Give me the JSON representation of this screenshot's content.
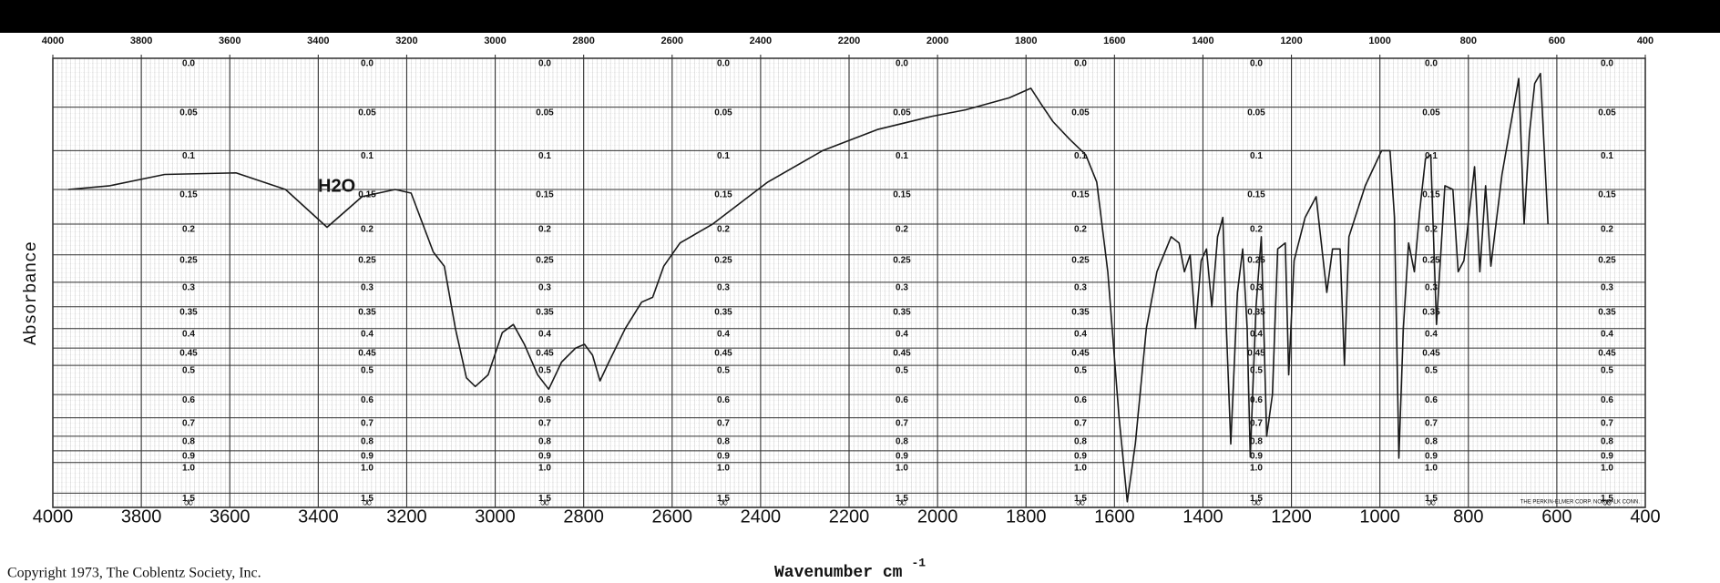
{
  "chart_data": {
    "type": "line",
    "y_label": "Absorbance",
    "x_label": "Wavenumber cm",
    "x_label_sup": "-1",
    "copyright": "Copyright 1973, The Coblentz Society, Inc.",
    "manufacturer": "THE PERKIN-ELMER CORP. NORWALK CONN.",
    "annotation": "H2O",
    "y_scale": "transmittance",
    "y_end_label": "∞",
    "color": "#1a1a1a",
    "grid": true,
    "xlim": [
      4000,
      400
    ],
    "xticks": [
      4000,
      3800,
      3600,
      3400,
      3200,
      3000,
      2800,
      2600,
      2400,
      2200,
      2000,
      1800,
      1600,
      1400,
      1200,
      1000,
      800,
      600,
      400
    ],
    "ylim": [
      0,
      1.5
    ],
    "yticks": [
      {
        "value": 0,
        "label": "0.0"
      },
      0.05,
      0.1,
      0.15,
      0.2,
      0.25,
      0.3,
      0.35,
      0.4,
      0.45,
      0.5,
      0.6,
      0.7,
      0.8,
      0.9,
      {
        "value": 1,
        "label": "1.0"
      },
      1.5
    ],
    "x": [
      3965,
      3871,
      3747,
      3586,
      3474,
      3380,
      3301,
      3226,
      3190,
      3140,
      3115,
      3090,
      3065,
      3045,
      3016,
      2984,
      2959,
      2934,
      2904,
      2879,
      2850,
      2818,
      2798,
      2780,
      2763,
      2743,
      2706,
      2669,
      2644,
      2619,
      2582,
      2508,
      2384,
      2260,
      2136,
      2012,
      1937,
      1838,
      1789,
      1764,
      1739,
      1702,
      1665,
      1640,
      1615,
      1590,
      1571,
      1553,
      1528,
      1504,
      1472,
      1454,
      1442,
      1429,
      1417,
      1404,
      1392,
      1380,
      1367,
      1355,
      1347,
      1337,
      1322,
      1310,
      1300,
      1293,
      1280,
      1268,
      1256,
      1243,
      1231,
      1214,
      1206,
      1194,
      1169,
      1144,
      1120,
      1107,
      1090,
      1080,
      1070,
      1033,
      996,
      977,
      967,
      957,
      947,
      935,
      922,
      910,
      897,
      885,
      872,
      853,
      835,
      823,
      810,
      786,
      774,
      761,
      749,
      724,
      686,
      674,
      662,
      650,
      637,
      620
    ],
    "values": [
      0.15,
      0.145,
      0.13,
      0.128,
      0.15,
      0.205,
      0.16,
      0.15,
      0.155,
      0.245,
      0.27,
      0.4,
      0.54,
      0.57,
      0.53,
      0.41,
      0.39,
      0.44,
      0.53,
      0.58,
      0.49,
      0.45,
      0.44,
      0.47,
      0.55,
      0.49,
      0.4,
      0.34,
      0.33,
      0.27,
      0.23,
      0.2,
      0.14,
      0.1,
      0.075,
      0.06,
      0.053,
      0.04,
      0.03,
      0.048,
      0.066,
      0.086,
      0.105,
      0.14,
      0.28,
      0.69,
      1.9,
      0.85,
      0.4,
      0.28,
      0.22,
      0.23,
      0.28,
      0.25,
      0.4,
      0.26,
      0.24,
      0.35,
      0.22,
      0.19,
      0.4,
      0.85,
      0.32,
      0.24,
      0.4,
      0.95,
      0.35,
      0.22,
      0.8,
      0.6,
      0.24,
      0.23,
      0.53,
      0.26,
      0.19,
      0.16,
      0.32,
      0.24,
      0.24,
      0.5,
      0.22,
      0.145,
      0.1,
      0.1,
      0.19,
      0.96,
      0.4,
      0.23,
      0.28,
      0.18,
      0.11,
      0.105,
      0.39,
      0.145,
      0.15,
      0.28,
      0.26,
      0.12,
      0.28,
      0.145,
      0.27,
      0.13,
      0.02,
      0.2,
      0.08,
      0.025,
      0.015,
      0.2
    ]
  }
}
